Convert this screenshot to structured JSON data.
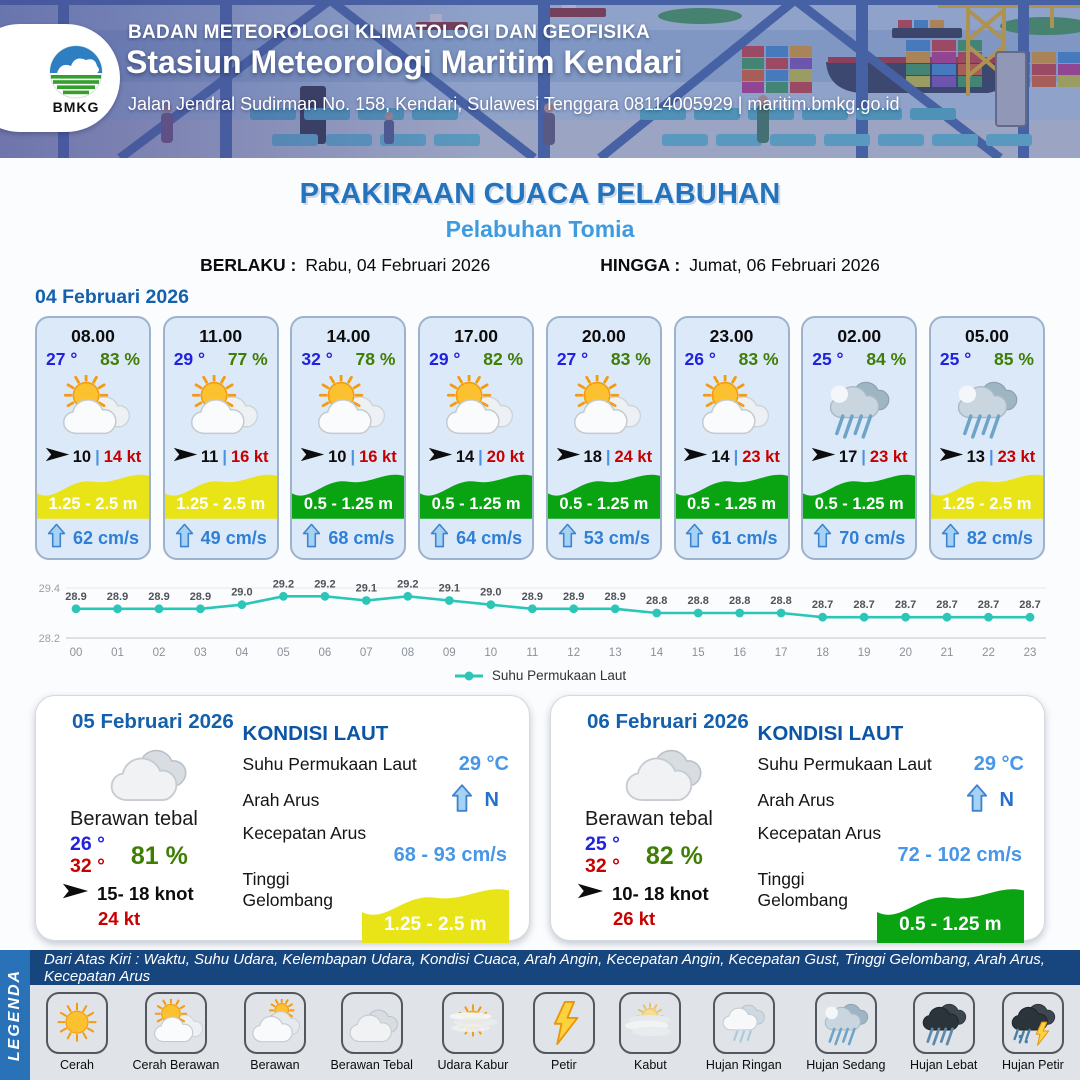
{
  "header": {
    "logo_text": "BMKG",
    "agency": "BADAN METEOROLOGI KLIMATOLOGI DAN GEOFISIKA",
    "station": "Stasiun Meteorologi Maritim Kendari",
    "address": "Jalan Jendral Sudirman No. 158, Kendari, Sulawesi Tenggara  08114005929 | maritim.bmkg.go.id"
  },
  "title": {
    "main": "PRAKIRAAN CUACA PELABUHAN",
    "subtitle": "Pelabuhan Tomia",
    "berlaku_label": "BERLAKU :",
    "berlaku_value": "Rabu, 04 Februari 2026",
    "hingga_label": "HINGGA :",
    "hingga_value": "Jumat, 06 Februari 2026"
  },
  "hourly": {
    "date": "04 Februari 2026",
    "separator": "|",
    "cards": [
      {
        "time": "08.00",
        "temp": "27 °",
        "humidity": "83 %",
        "icon": "cerah-berawan",
        "wind": "10",
        "gust": "14 kt",
        "wave": "1.25 - 2.5 m",
        "wave_color": "#e9e418",
        "current": "62 cm/s"
      },
      {
        "time": "11.00",
        "temp": "29 °",
        "humidity": "77 %",
        "icon": "cerah-berawan",
        "wind": "11",
        "gust": "16 kt",
        "wave": "1.25 - 2.5 m",
        "wave_color": "#e9e418",
        "current": "49 cm/s"
      },
      {
        "time": "14.00",
        "temp": "32 °",
        "humidity": "78 %",
        "icon": "cerah-berawan",
        "wind": "10",
        "gust": "16 kt",
        "wave": "0.5 - 1.25 m",
        "wave_color": "#0aa312",
        "current": "68 cm/s"
      },
      {
        "time": "17.00",
        "temp": "29 °",
        "humidity": "82 %",
        "icon": "cerah-berawan",
        "wind": "14",
        "gust": "20 kt",
        "wave": "0.5 - 1.25 m",
        "wave_color": "#0aa312",
        "current": "64 cm/s"
      },
      {
        "time": "20.00",
        "temp": "27 °",
        "humidity": "83 %",
        "icon": "cerah-berawan",
        "wind": "18",
        "gust": "24 kt",
        "wave": "0.5 - 1.25 m",
        "wave_color": "#0aa312",
        "current": "53 cm/s"
      },
      {
        "time": "23.00",
        "temp": "26 °",
        "humidity": "83 %",
        "icon": "cerah-berawan",
        "wind": "14",
        "gust": "23 kt",
        "wave": "0.5 - 1.25 m",
        "wave_color": "#0aa312",
        "current": "61 cm/s"
      },
      {
        "time": "02.00",
        "temp": "25 °",
        "humidity": "84 %",
        "icon": "hujan-sedang",
        "wind": "17",
        "gust": "23 kt",
        "wave": "0.5 - 1.25 m",
        "wave_color": "#0aa312",
        "current": "70 cm/s"
      },
      {
        "time": "05.00",
        "temp": "25 °",
        "humidity": "85 %",
        "icon": "hujan-sedang",
        "wind": "13",
        "gust": "23 kt",
        "wave": "1.25 - 2.5 m",
        "wave_color": "#e9e418",
        "current": "82 cm/s"
      }
    ]
  },
  "chart_data": {
    "type": "line",
    "x": [
      "00",
      "01",
      "02",
      "03",
      "04",
      "05",
      "06",
      "07",
      "08",
      "09",
      "10",
      "11",
      "12",
      "13",
      "14",
      "15",
      "16",
      "17",
      "18",
      "19",
      "20",
      "21",
      "22",
      "23"
    ],
    "series": [
      {
        "name": "Suhu Permukaan Laut",
        "values": [
          28.9,
          28.9,
          28.9,
          28.9,
          29.0,
          29.2,
          29.2,
          29.1,
          29.2,
          29.1,
          29.0,
          28.9,
          28.9,
          28.9,
          28.8,
          28.8,
          28.8,
          28.8,
          28.7,
          28.7,
          28.7,
          28.7,
          28.7,
          28.7
        ]
      }
    ],
    "ylim": [
      28.2,
      29.4
    ],
    "yticks": [
      "29.4",
      "28.2"
    ],
    "line_color": "#2cc6b8",
    "legend": "Suhu Permukaan Laut",
    "legend_position": "bottom",
    "grid": "top-and-bottom-only"
  },
  "sea": {
    "title": "KONDISI LAUT",
    "sst_label": "Suhu Permukaan Laut",
    "dir_label": "Arah Arus",
    "speed_label": "Kecepatan Arus",
    "wave_label": "Tinggi Gelombang"
  },
  "days": [
    {
      "date": "05 Februari 2026",
      "icon": "berawan-tebal",
      "condition": "Berawan tebal",
      "temp_min": "26 °",
      "temp_max": "32 °",
      "humidity": "81 %",
      "wind": "15- 18 knot",
      "gust": "24 kt",
      "sst": "29 °C",
      "current_dir": "N",
      "current_speed": "68 - 93 cm/s",
      "wave": "1.25 - 2.5 m",
      "wave_color": "#e9e418"
    },
    {
      "date": "06 Februari 2026",
      "icon": "berawan-tebal",
      "condition": "Berawan tebal",
      "temp_min": "25 °",
      "temp_max": "32 °",
      "humidity": "82 %",
      "wind": "10- 18 knot",
      "gust": "26 kt",
      "sst": "29 °C",
      "current_dir": "N",
      "current_speed": "72 - 102 cm/s",
      "wave": "0.5 - 1.25 m",
      "wave_color": "#0aa312"
    }
  ],
  "legend": {
    "title": "LEGENDA",
    "description": "Dari Atas Kiri : Waktu, Suhu Udara, Kelembapan Udara, Kondisi Cuaca, Arah Angin, Kecepatan Angin, Kecepatan Gust, Tinggi Gelombang, Arah Arus, Kecepatan Arus",
    "items": [
      {
        "label": "Cerah",
        "icon": "cerah"
      },
      {
        "label": "Cerah Berawan",
        "icon": "cerah-berawan"
      },
      {
        "label": "Berawan",
        "icon": "berawan"
      },
      {
        "label": "Berawan Tebal",
        "icon": "berawan-tebal"
      },
      {
        "label": "Udara Kabur",
        "icon": "udara-kabur"
      },
      {
        "label": "Petir",
        "icon": "petir"
      },
      {
        "label": "Kabut",
        "icon": "kabut"
      },
      {
        "label": "Hujan Ringan",
        "icon": "hujan-ringan"
      },
      {
        "label": "Hujan Sedang",
        "icon": "hujan-sedang"
      },
      {
        "label": "Hujan Lebat",
        "icon": "hujan-lebat"
      },
      {
        "label": "Hujan Petir",
        "icon": "hujan-petir"
      }
    ]
  },
  "colors": {
    "accent_blue": "#1560ac",
    "title_blue": "#2374bd",
    "subtitle_blue": "#3f9be0",
    "temp_blue": "#2121df",
    "humidity_green": "#3f7e04",
    "gust_red": "#c50000",
    "current_blue": "#2e7fd6",
    "wave_yellow": "#e9e418",
    "wave_green": "#0aa312",
    "chart_teal": "#2cc6b8"
  }
}
